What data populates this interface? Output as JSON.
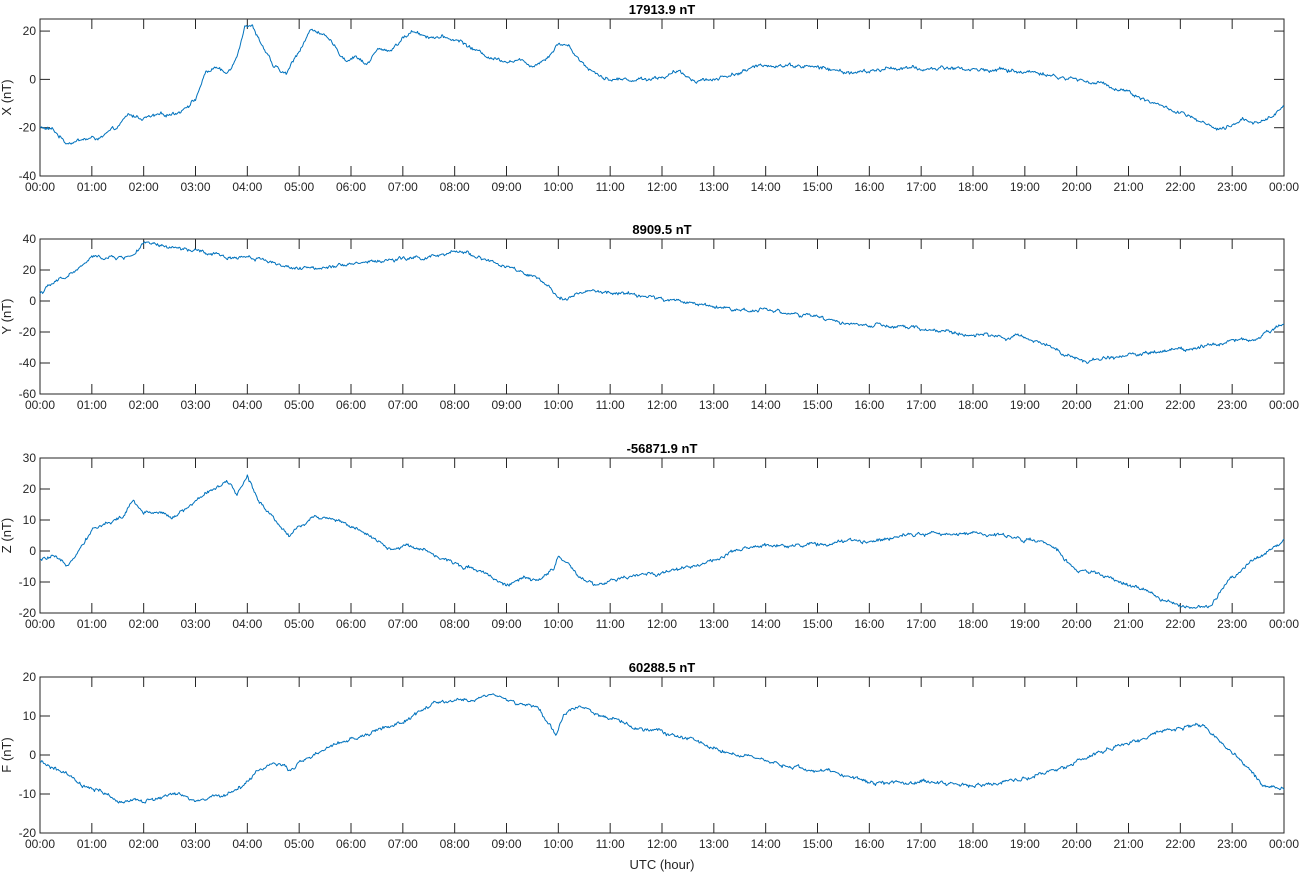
{
  "colors": {
    "series": "#0072bd",
    "axis": "#262626",
    "background": "#ffffff"
  },
  "chart_data": [
    {
      "type": "line",
      "title": "17913.9 nT",
      "ylabel": "X (nT)",
      "xlabel": "",
      "ylim": [
        -40,
        25
      ],
      "yticks": [
        -40,
        -20,
        0,
        20
      ],
      "xlim": [
        0,
        24
      ],
      "xticks": [
        0,
        1,
        2,
        3,
        4,
        5,
        6,
        7,
        8,
        9,
        10,
        11,
        12,
        13,
        14,
        15,
        16,
        17,
        18,
        19,
        20,
        21,
        22,
        23,
        24
      ],
      "xticklabels": [
        "00:00",
        "01:00",
        "02:00",
        "03:00",
        "04:00",
        "05:00",
        "06:00",
        "07:00",
        "08:00",
        "09:00",
        "10:00",
        "11:00",
        "12:00",
        "13:00",
        "14:00",
        "15:00",
        "16:00",
        "17:00",
        "18:00",
        "19:00",
        "20:00",
        "21:00",
        "22:00",
        "23:00",
        "00:00"
      ],
      "series": [
        {
          "name": "X",
          "x": [
            0,
            0.25,
            0.5,
            0.8,
            1.2,
            1.5,
            1.7,
            2.0,
            2.4,
            2.7,
            3.0,
            3.2,
            3.4,
            3.6,
            3.8,
            3.95,
            4.1,
            4.3,
            4.5,
            4.75,
            5.0,
            5.2,
            5.4,
            5.65,
            5.9,
            6.1,
            6.3,
            6.5,
            6.75,
            7.0,
            7.2,
            7.5,
            7.8,
            8.1,
            8.4,
            8.7,
            9.0,
            9.2,
            9.5,
            9.7,
            9.85,
            10.0,
            10.2,
            10.5,
            10.7,
            11.0,
            11.5,
            12.0,
            12.3,
            12.6,
            13.0,
            13.5,
            14.0,
            14.5,
            15.0,
            15.5,
            16.0,
            16.5,
            17.0,
            17.5,
            18.0,
            18.5,
            19.0,
            19.3,
            19.6,
            20.0,
            20.5,
            21.0,
            21.5,
            22.0,
            22.3,
            22.5,
            22.7,
            23.0,
            23.2,
            23.5,
            23.8,
            24.0
          ],
          "values": [
            -20,
            -21,
            -26,
            -25,
            -24,
            -20,
            -15,
            -16,
            -15,
            -13,
            -8,
            3,
            5,
            2,
            10,
            23,
            22,
            14,
            5,
            2,
            12,
            20,
            20,
            14,
            8,
            10,
            6,
            12,
            12,
            17,
            20,
            18,
            17,
            16,
            12,
            9,
            8,
            8,
            6,
            8,
            11,
            15,
            14,
            6,
            3,
            0,
            0,
            1,
            3,
            0,
            0,
            3,
            6,
            6,
            5,
            3,
            3,
            5,
            4,
            5,
            4,
            4,
            3,
            3,
            1,
            0,
            -2,
            -5,
            -10,
            -14,
            -17,
            -19,
            -21,
            -20,
            -16,
            -18,
            -15,
            -10
          ]
        }
      ]
    },
    {
      "type": "line",
      "title": "8909.5 nT",
      "ylabel": "Y (nT)",
      "xlabel": "",
      "ylim": [
        -60,
        40
      ],
      "yticks": [
        -60,
        -40,
        -20,
        0,
        20,
        40
      ],
      "xlim": [
        0,
        24
      ],
      "xticks": [
        0,
        1,
        2,
        3,
        4,
        5,
        6,
        7,
        8,
        9,
        10,
        11,
        12,
        13,
        14,
        15,
        16,
        17,
        18,
        19,
        20,
        21,
        22,
        23,
        24
      ],
      "xticklabels": [
        "00:00",
        "01:00",
        "02:00",
        "03:00",
        "04:00",
        "05:00",
        "06:00",
        "07:00",
        "08:00",
        "09:00",
        "10:00",
        "11:00",
        "12:00",
        "13:00",
        "14:00",
        "15:00",
        "16:00",
        "17:00",
        "18:00",
        "19:00",
        "20:00",
        "21:00",
        "22:00",
        "23:00",
        "00:00"
      ],
      "series": [
        {
          "name": "Y",
          "x": [
            0,
            0.2,
            0.5,
            0.8,
            1.0,
            1.3,
            1.6,
            1.8,
            2.0,
            2.3,
            2.6,
            3.0,
            3.3,
            3.6,
            4.0,
            4.3,
            4.6,
            5.0,
            5.4,
            5.8,
            6.2,
            6.6,
            7.0,
            7.4,
            7.8,
            8.0,
            8.2,
            8.5,
            8.8,
            9.0,
            9.3,
            9.6,
            9.8,
            10.0,
            10.3,
            10.6,
            11.0,
            11.5,
            12.0,
            12.5,
            13.0,
            13.5,
            14.0,
            14.5,
            15.0,
            15.5,
            16.0,
            16.5,
            17.0,
            17.5,
            18.0,
            18.5,
            19.0,
            19.3,
            19.6,
            19.9,
            20.2,
            20.5,
            21.0,
            21.5,
            22.0,
            22.3,
            22.6,
            23.0,
            23.5,
            24.0
          ],
          "values": [
            5,
            10,
            16,
            22,
            28,
            28,
            28,
            30,
            37,
            35,
            34,
            32,
            30,
            28,
            29,
            27,
            24,
            20,
            22,
            24,
            25,
            26,
            27,
            28,
            29,
            31,
            32,
            28,
            24,
            22,
            18,
            14,
            8,
            2,
            4,
            6,
            5,
            4,
            1,
            -1,
            -3,
            -6,
            -5,
            -8,
            -11,
            -14,
            -16,
            -17,
            -18,
            -20,
            -22,
            -23,
            -24,
            -26,
            -30,
            -36,
            -40,
            -37,
            -35,
            -33,
            -31,
            -30,
            -27,
            -26,
            -24,
            -14
          ]
        }
      ]
    },
    {
      "type": "line",
      "title": "-56871.9 nT",
      "ylabel": "Z (nT)",
      "xlabel": "",
      "ylim": [
        -20,
        30
      ],
      "yticks": [
        -20,
        -10,
        0,
        10,
        20,
        30
      ],
      "xlim": [
        0,
        24
      ],
      "xticks": [
        0,
        1,
        2,
        3,
        4,
        5,
        6,
        7,
        8,
        9,
        10,
        11,
        12,
        13,
        14,
        15,
        16,
        17,
        18,
        19,
        20,
        21,
        22,
        23,
        24
      ],
      "xticklabels": [
        "00:00",
        "01:00",
        "02:00",
        "03:00",
        "04:00",
        "05:00",
        "06:00",
        "07:00",
        "08:00",
        "09:00",
        "10:00",
        "11:00",
        "12:00",
        "13:00",
        "14:00",
        "15:00",
        "16:00",
        "17:00",
        "18:00",
        "19:00",
        "20:00",
        "21:00",
        "22:00",
        "23:00",
        "00:00"
      ],
      "series": [
        {
          "name": "Z",
          "x": [
            0,
            0.25,
            0.5,
            0.8,
            1.0,
            1.3,
            1.6,
            1.8,
            2.0,
            2.3,
            2.6,
            3.0,
            3.3,
            3.6,
            3.8,
            4.0,
            4.2,
            4.4,
            4.6,
            4.8,
            5.0,
            5.3,
            5.6,
            5.9,
            6.2,
            6.5,
            6.8,
            7.1,
            7.4,
            7.8,
            8.2,
            8.5,
            8.8,
            9.0,
            9.3,
            9.6,
            9.9,
            10.0,
            10.2,
            10.4,
            10.7,
            11.0,
            11.5,
            12.0,
            12.5,
            13.0,
            13.5,
            14.0,
            14.5,
            15.0,
            15.5,
            16.0,
            16.5,
            17.0,
            17.5,
            18.0,
            18.5,
            19.0,
            19.3,
            19.6,
            20.0,
            20.5,
            21.0,
            21.5,
            22.0,
            22.3,
            22.6,
            23.0,
            23.4,
            23.8,
            24.0
          ],
          "values": [
            -3,
            -2,
            -5,
            2,
            7,
            9,
            11,
            16,
            12,
            13,
            11,
            16,
            20,
            22,
            18,
            24,
            17,
            13,
            9,
            5,
            8,
            11,
            11,
            9,
            6,
            3,
            0,
            2,
            1,
            -3,
            -5,
            -6,
            -9,
            -11,
            -9,
            -10,
            -6,
            -1,
            -5,
            -9,
            -11,
            -10,
            -8,
            -7,
            -5,
            -3,
            0,
            2,
            2,
            2,
            3,
            3,
            5,
            6,
            5,
            6,
            5,
            4,
            3,
            0,
            -6,
            -8,
            -11,
            -14,
            -18,
            -19,
            -17,
            -8,
            -3,
            1,
            4
          ]
        }
      ]
    },
    {
      "type": "line",
      "title": "60288.5 nT",
      "ylabel": "F (nT)",
      "xlabel": "UTC (hour)",
      "ylim": [
        -20,
        20
      ],
      "yticks": [
        -20,
        -10,
        0,
        10,
        20
      ],
      "xlim": [
        0,
        24
      ],
      "xticks": [
        0,
        1,
        2,
        3,
        4,
        5,
        6,
        7,
        8,
        9,
        10,
        11,
        12,
        13,
        14,
        15,
        16,
        17,
        18,
        19,
        20,
        21,
        22,
        23,
        24
      ],
      "xticklabels": [
        "00:00",
        "01:00",
        "02:00",
        "03:00",
        "04:00",
        "05:00",
        "06:00",
        "07:00",
        "08:00",
        "09:00",
        "10:00",
        "11:00",
        "12:00",
        "13:00",
        "14:00",
        "15:00",
        "16:00",
        "17:00",
        "18:00",
        "19:00",
        "20:00",
        "21:00",
        "22:00",
        "23:00",
        "00:00"
      ],
      "series": [
        {
          "name": "F",
          "x": [
            0,
            0.2,
            0.5,
            0.8,
            1.0,
            1.3,
            1.6,
            1.8,
            2.0,
            2.3,
            2.6,
            3.0,
            3.3,
            3.6,
            3.9,
            4.2,
            4.5,
            4.8,
            5.0,
            5.3,
            5.6,
            6.0,
            6.3,
            6.6,
            7.0,
            7.3,
            7.6,
            8.0,
            8.4,
            8.7,
            9.0,
            9.3,
            9.6,
            9.8,
            9.95,
            10.1,
            10.4,
            10.7,
            11.0,
            11.5,
            12.0,
            12.5,
            13.0,
            13.5,
            14.0,
            14.5,
            15.0,
            15.5,
            16.0,
            16.5,
            17.0,
            17.5,
            18.0,
            18.5,
            19.0,
            19.5,
            20.0,
            20.5,
            21.0,
            21.5,
            22.0,
            22.3,
            22.5,
            22.7,
            23.0,
            23.3,
            23.6,
            24.0
          ],
          "values": [
            -2,
            -3,
            -5,
            -8,
            -9,
            -10,
            -13,
            -11,
            -12,
            -11,
            -10,
            -12,
            -11,
            -10,
            -8,
            -4,
            -2,
            -4,
            -2,
            0,
            2,
            4,
            5,
            7,
            8,
            11,
            13,
            14,
            14,
            16,
            14,
            13,
            12,
            8,
            5,
            10,
            13,
            11,
            9,
            7,
            6,
            4,
            2,
            0,
            -2,
            -3,
            -4,
            -5,
            -7,
            -7,
            -7,
            -7,
            -8,
            -7,
            -6,
            -4,
            -2,
            1,
            3,
            5,
            7,
            8,
            7,
            4,
            0,
            -3,
            -8,
            -9
          ]
        }
      ]
    }
  ]
}
